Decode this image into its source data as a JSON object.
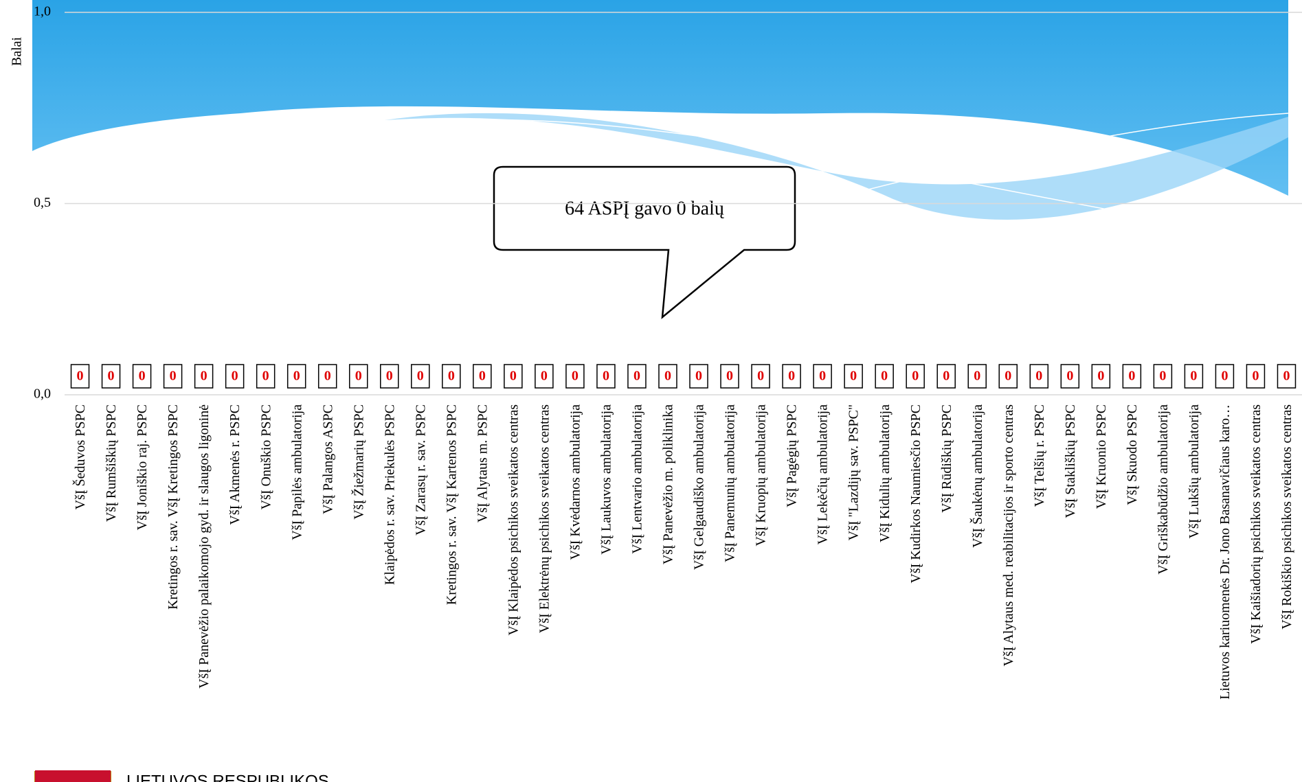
{
  "chart_data": {
    "type": "bar",
    "y_label": "Balai",
    "annotation": "64 ASPĮ gavo 0 balų",
    "footer": "LIETUVOS RESPUBLIKOS",
    "categories": [
      "VšĮ Šeduvos PSPC",
      "VšĮ Rumšiškių PSPC",
      "VšĮ Joniškio raj. PSPC",
      "Kretingos r. sav. VšĮ Kretingos PSPC",
      "VšĮ Panevėžio palaikomojo gyd. ir slaugos ligoninė",
      "VšĮ Akmenės r. PSPC",
      "VšĮ Onuškio PSPC",
      "VšĮ Papilės ambulatorija",
      "VšĮ Palangos ASPC",
      "VšĮ Žiežmarių PSPC",
      "Klaipėdos r. sav. Priekulės PSPC",
      "VšĮ Zarasų r. sav. PSPC",
      "Kretingos r. sav. VšĮ Kartenos PSPC",
      "VšĮ Alytaus m. PSPC",
      "VšĮ Klaipėdos psichikos sveikatos centras",
      "VšĮ Elektrėnų psichikos sveikatos centras",
      "VšĮ Kvėdarnos ambulatorija",
      "VšĮ Laukuvos ambulatorija",
      "VšĮ Lentvario ambulatorija",
      "VšĮ Panevėžio m. poliklinika",
      "VšĮ Gelgaudiško ambulatorija",
      "VšĮ Panemunių ambulatorija",
      "VšĮ Kruopių ambulatorija",
      "VšĮ Pagėgių PSPC",
      "VšĮ Lekėčių ambulatorija",
      "VšĮ \"Lazdijų sav. PSPC\"",
      "VšĮ Kidulių ambulatorija",
      "VšĮ Kudirkos Naumiesčio PSPC",
      "VšĮ Rūdiškių PSPC",
      "VšĮ Šaukėnų ambulatorija",
      "VšĮ Alytaus med. reabilitacijos ir sporto centras",
      "VšĮ Telšių r. PSPC",
      "VšĮ Stakliškių PSPC",
      "VšĮ Kruonio PSPC",
      "VšĮ Skuodo PSPC",
      "VšĮ Griškabūdžio ambulatorija",
      "VšĮ Lukšių ambulatorija",
      "Lietuvos kariuomenės Dr. Jono Basanavičiaus karo…",
      "VšĮ Kaišiadorių psichikos sveikatos centras",
      "VšĮ Rokiškio psichikos sveikatos centras"
    ],
    "values": [
      0,
      0,
      0,
      0,
      0,
      0,
      0,
      0,
      0,
      0,
      0,
      0,
      0,
      0,
      0,
      0,
      0,
      0,
      0,
      0,
      0,
      0,
      0,
      0,
      0,
      0,
      0,
      0,
      0,
      0,
      0,
      0,
      0,
      0,
      0,
      0,
      0,
      0,
      0,
      0
    ],
    "color": "#4f81bd",
    "label_color": "#e00000",
    "ylim": [
      0,
      1
    ],
    "yticks": [
      {
        "value": 0,
        "label": "0,0"
      },
      {
        "value": 0.5,
        "label": "0,5"
      },
      {
        "value": 1,
        "label": "1,0"
      }
    ],
    "grid": true
  }
}
